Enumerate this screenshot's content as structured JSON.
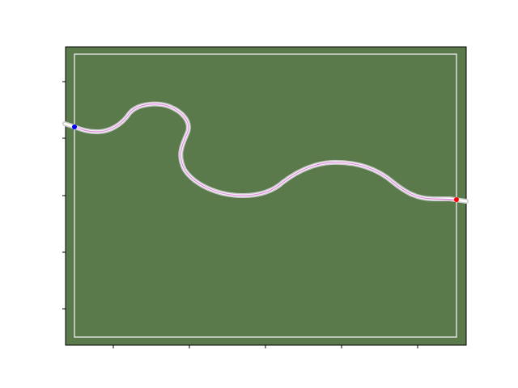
{
  "scene": {
    "field_color": "#5a7a4c",
    "field_border_color": "#000000",
    "boundary_line_color": "#e6e6e6",
    "road_edge_color": "#c8c8c8",
    "road_center_color": "#e38ae3",
    "start_marker_color": "#0000ff",
    "goal_marker_color": "#ff0000",
    "icons": {
      "start": "start-marker-icon",
      "goal": "goal-marker-icon"
    }
  },
  "axes": {
    "x_tick_count": 5,
    "y_tick_count": 5,
    "tick_labels_visible": false
  }
}
